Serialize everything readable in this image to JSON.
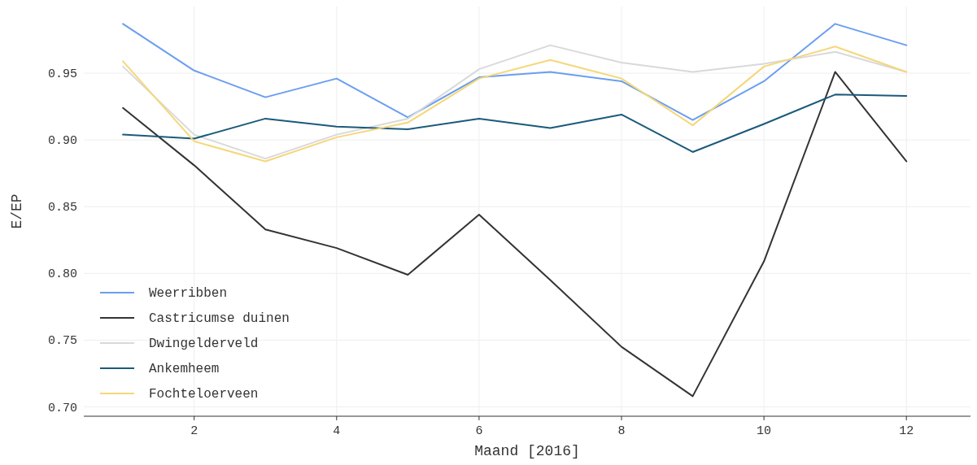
{
  "chart_data": {
    "type": "line",
    "xlabel": "Maand [2016]",
    "ylabel": "E/EP",
    "x": [
      1,
      2,
      3,
      4,
      5,
      6,
      7,
      8,
      9,
      10,
      11,
      12
    ],
    "xlim": [
      0.45,
      12.9
    ],
    "xticks": [
      2,
      4,
      6,
      8,
      10,
      12
    ],
    "ylim": [
      0.693,
      1.0
    ],
    "yticks": [
      {
        "value": 0.7,
        "label": "0.70"
      },
      {
        "value": 0.75,
        "label": "0.75"
      },
      {
        "value": 0.8,
        "label": "0.80"
      },
      {
        "value": 0.85,
        "label": "0.85"
      },
      {
        "value": 0.9,
        "label": "0.90"
      },
      {
        "value": 0.95,
        "label": "0.95"
      }
    ],
    "grid": true,
    "legend": "bottom left",
    "line_style": "solid",
    "series": [
      {
        "name": "Weerribben",
        "color": "#6a9ef0",
        "values": [
          0.987,
          0.952,
          0.932,
          0.946,
          0.917,
          0.947,
          0.951,
          0.944,
          0.915,
          0.944,
          0.987,
          0.971
        ]
      },
      {
        "name": "Castricumse duinen",
        "color": "#333333",
        "values": [
          0.924,
          0.881,
          0.833,
          0.819,
          0.799,
          0.844,
          0.795,
          0.745,
          0.708,
          0.809,
          0.951,
          0.884
        ]
      },
      {
        "name": "Dwingelderveld",
        "color": "#d9d9d9",
        "values": [
          0.955,
          0.904,
          0.886,
          0.904,
          0.916,
          0.953,
          0.971,
          0.958,
          0.951,
          0.957,
          0.966,
          0.951
        ]
      },
      {
        "name": "Ankemheem",
        "color": "#1b5a7a",
        "values": [
          0.904,
          0.901,
          0.916,
          0.91,
          0.908,
          0.916,
          0.909,
          0.919,
          0.891,
          0.912,
          0.934,
          0.933
        ]
      },
      {
        "name": "Fochteloerveen",
        "color": "#f5d77a",
        "values": [
          0.959,
          0.899,
          0.884,
          0.902,
          0.913,
          0.946,
          0.96,
          0.946,
          0.911,
          0.955,
          0.97,
          0.951
        ]
      }
    ]
  }
}
